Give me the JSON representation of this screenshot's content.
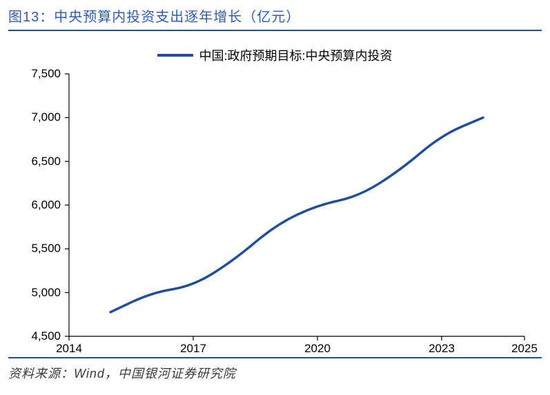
{
  "title": "图13：中央预算内投资支出逐年增长（亿元）",
  "source": "资料来源：Wind，中国银河证券研究院",
  "chart": {
    "type": "line",
    "legend_label": "中国:政府预期目标:中央预算内投资",
    "line_color": "#1f4e9c",
    "line_width": 3.5,
    "axis_color": "#000000",
    "title_color": "#2e5cb8",
    "rule_color": "#1f4e9c",
    "background_color": "#ffffff",
    "xlim": [
      2014,
      2025
    ],
    "ylim": [
      4500,
      7500
    ],
    "x_ticks": [
      2014,
      2017,
      2020,
      2023,
      2025
    ],
    "y_ticks": [
      4500,
      5000,
      5500,
      6000,
      6500,
      7000,
      7500
    ],
    "y_tick_labels": [
      "4,500",
      "5,000",
      "5,500",
      "6,000",
      "6,500",
      "7,000",
      "7,500"
    ],
    "x_tick_labels": [
      "2014",
      "2017",
      "2020",
      "2023",
      "2025"
    ],
    "series": {
      "x": [
        2015,
        2016,
        2017,
        2018,
        2019,
        2020,
        2021,
        2022,
        2023,
        2024
      ],
      "y": [
        4776,
        5000,
        5076,
        5376,
        5776,
        6000,
        6100,
        6400,
        6800,
        7000
      ]
    },
    "tick_length": 6,
    "label_fontsize": 17,
    "title_fontsize": 20,
    "legend_fontsize": 18,
    "source_fontsize": 18
  }
}
